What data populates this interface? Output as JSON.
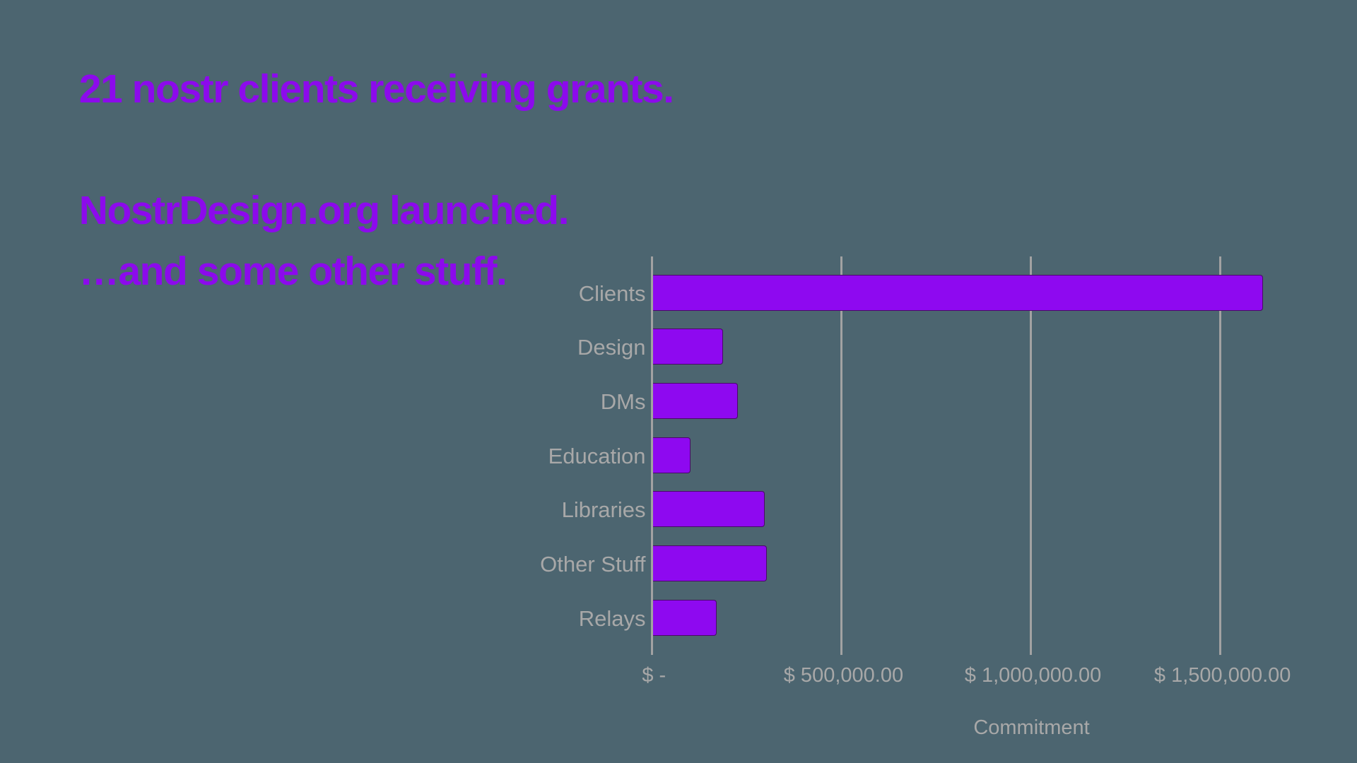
{
  "slide": {
    "background_color": "#4C6570",
    "accent_color": "#8C0AEC"
  },
  "headlines": [
    {
      "text": "21 nostr clients receiving grants."
    },
    {
      "text": "NostrDesign.org launched."
    },
    {
      "text": "…and some other stuff."
    }
  ],
  "chart_data": {
    "type": "bar",
    "orientation": "horizontal",
    "title": "",
    "xlabel": "Commitment",
    "ylabel": "",
    "categories": [
      "Clients",
      "Design",
      "DMs",
      "Education",
      "Libraries",
      "Other Stuff",
      "Relays"
    ],
    "values": [
      1611000,
      185500,
      225000,
      100000,
      297000,
      302000,
      170000
    ],
    "x_ticks": [
      {
        "value": 0,
        "label": "$ -"
      },
      {
        "value": 500000,
        "label": "$ 500,000.00"
      },
      {
        "value": 1000000,
        "label": "$ 1,000,000.00"
      },
      {
        "value": 1500000,
        "label": "$ 1,500,000.00"
      }
    ],
    "grid": true,
    "legend": false,
    "bar_color": "#8E09F0",
    "bar_border_color": "#4A0968",
    "grid_color": "#A2A2A2",
    "label_color": "#A8A8A8"
  }
}
